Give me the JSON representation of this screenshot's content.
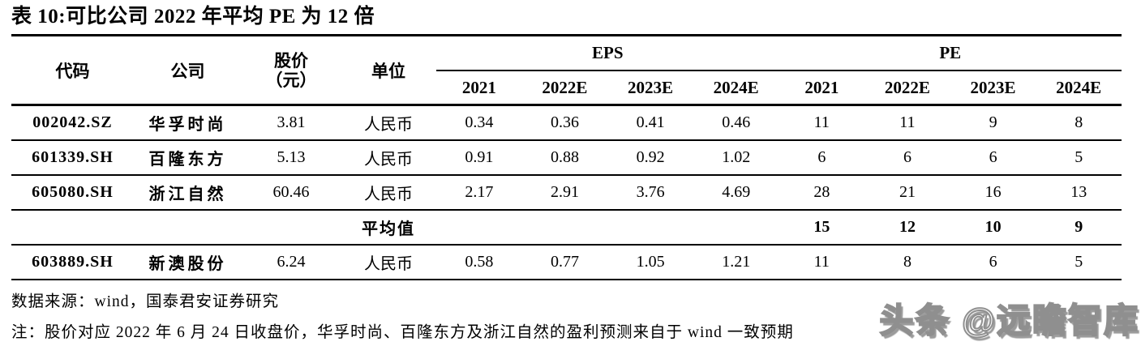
{
  "title": "表 10:可比公司 2022 年平均 PE 为 12 倍",
  "table": {
    "col_headers": {
      "code": "代码",
      "company": "公司",
      "price_line1": "股价",
      "price_line2": "（元）",
      "unit": "单位"
    },
    "groups": {
      "eps": "EPS",
      "pe": "PE"
    },
    "year_headers": [
      "2021",
      "2022E",
      "2023E",
      "2024E",
      "2021",
      "2022E",
      "2023E",
      "2024E"
    ],
    "rows": [
      {
        "code": "002042.SZ",
        "company": "华孚时尚",
        "price": "3.81",
        "unit": "人民币",
        "values": [
          "0.34",
          "0.36",
          "0.41",
          "0.46",
          "11",
          "11",
          "9",
          "8"
        ]
      },
      {
        "code": "601339.SH",
        "company": "百隆东方",
        "price": "5.13",
        "unit": "人民币",
        "values": [
          "0.91",
          "0.88",
          "0.92",
          "1.02",
          "6",
          "6",
          "6",
          "5"
        ]
      },
      {
        "code": "605080.SH",
        "company": "浙江自然",
        "price": "60.46",
        "unit": "人民币",
        "values": [
          "2.17",
          "2.91",
          "3.76",
          "4.69",
          "28",
          "21",
          "16",
          "13"
        ]
      }
    ],
    "average_row": {
      "label": "平均值",
      "pe_values": [
        "15",
        "12",
        "10",
        "9"
      ]
    },
    "extra_row": {
      "code": "603889.SH",
      "company": "新澳股份",
      "price": "6.24",
      "unit": "人民币",
      "values": [
        "0.58",
        "0.77",
        "1.05",
        "1.21",
        "11",
        "8",
        "6",
        "5"
      ]
    }
  },
  "footer": {
    "source": "数据来源：wind，国泰君安证券研究",
    "note": "注：股价对应 2022 年 6 月 24 日收盘价，华孚时尚、百隆东方及浙江自然的盈利预测来自于 wind 一致预期"
  },
  "watermark": "头条 @远瞻智库"
}
